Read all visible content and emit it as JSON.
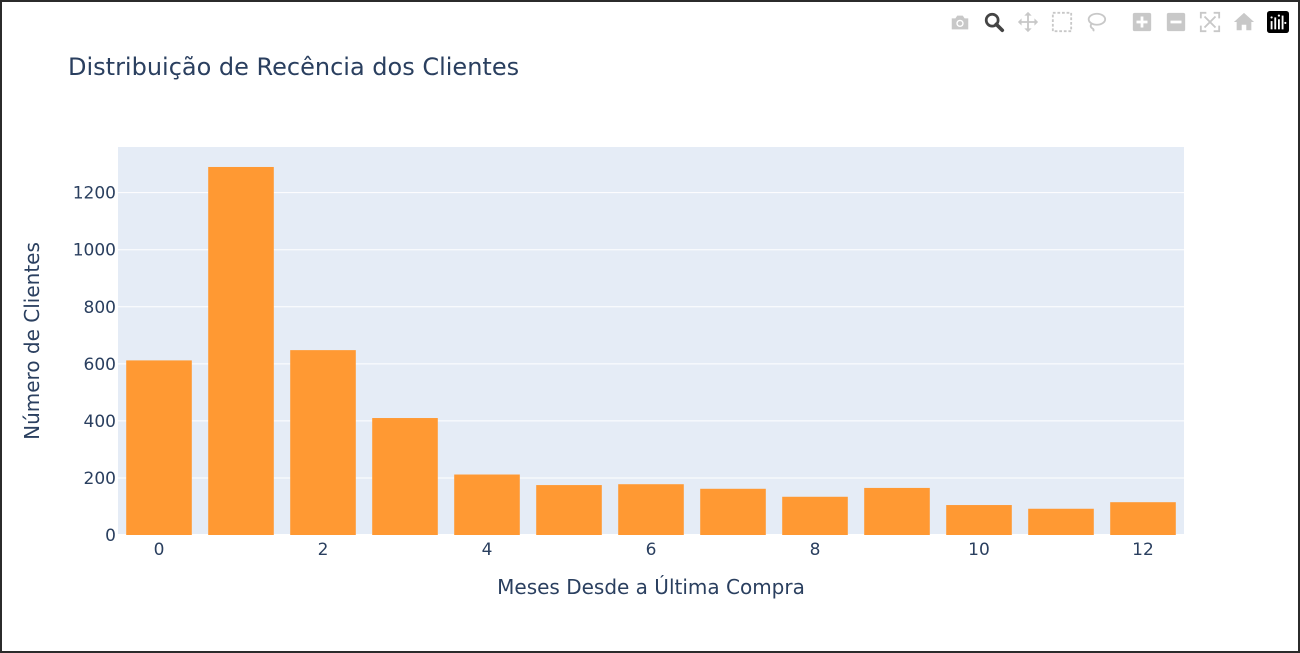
{
  "modebar": {
    "items": [
      {
        "icon": "camera-icon",
        "title": "Download plot as a png"
      },
      {
        "icon": "zoom-icon",
        "title": "Zoom"
      },
      {
        "icon": "pan-icon",
        "title": "Pan"
      },
      {
        "icon": "box-select-icon",
        "title": "Box Select"
      },
      {
        "icon": "lasso-select-icon",
        "title": "Lasso Select"
      },
      {
        "icon": "zoom-in-icon",
        "title": "Zoom in"
      },
      {
        "icon": "zoom-out-icon",
        "title": "Zoom out"
      },
      {
        "icon": "autoscale-icon",
        "title": "Autoscale"
      },
      {
        "icon": "reset-axes-icon",
        "title": "Reset axes"
      },
      {
        "icon": "plotly-logo-icon",
        "title": "Produced with Plotly"
      }
    ],
    "active_color": "#444444",
    "inactive_color": "#c8c8c8"
  },
  "chart_data": {
    "type": "bar",
    "title": "Distribuição de Recência dos Clientes",
    "xlabel": "Meses Desde a Última Compra",
    "ylabel": "Número de Clientes",
    "x": [
      0,
      1,
      2,
      3,
      4,
      5,
      6,
      7,
      8,
      9,
      10,
      11,
      12
    ],
    "values": [
      612,
      1290,
      648,
      410,
      212,
      175,
      178,
      162,
      134,
      165,
      105,
      92,
      115
    ],
    "xlim": [
      -0.5,
      12.5
    ],
    "ylim": [
      0,
      1360
    ],
    "xticks": [
      0,
      2,
      4,
      6,
      8,
      10,
      12
    ],
    "yticks": [
      0,
      200,
      400,
      600,
      800,
      1000,
      1200
    ],
    "grid": true,
    "bar_color": "#ff9933",
    "plot_bg": "#e5ecf6",
    "text_color": "#2a3f5f"
  }
}
